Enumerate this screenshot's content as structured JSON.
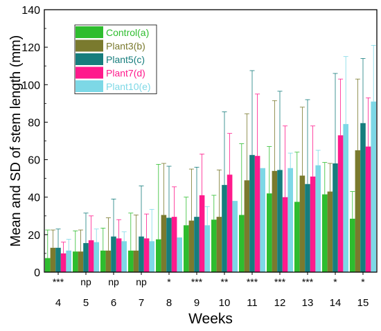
{
  "chart_data": {
    "type": "bar",
    "title": "",
    "xlabel": "Weeks",
    "ylabel": "Mean and SD of stem length (mm)",
    "ylim": [
      0,
      140
    ],
    "yticks": [
      0,
      20,
      40,
      60,
      80,
      100,
      120,
      140
    ],
    "grid": false,
    "legend_position": "top-left",
    "categories": [
      "4",
      "5",
      "6",
      "7",
      "8",
      "9",
      "10",
      "11",
      "12",
      "13",
      "14",
      "15"
    ],
    "significance": [
      "***",
      "np",
      "np",
      "np",
      "*",
      "***",
      "**",
      "***",
      "***",
      "***",
      "*",
      "*"
    ],
    "series": [
      {
        "name": "Control(a)",
        "color": "#2ebd2e",
        "values": [
          7.5,
          11,
          11.5,
          11.5,
          17.5,
          25,
          28,
          30.5,
          42,
          37.5,
          41.5,
          28.5
        ],
        "sd": [
          15,
          11,
          12,
          20,
          40,
          15,
          13,
          38,
          25,
          26.5,
          17,
          14.5
        ]
      },
      {
        "name": "Plant3(b)",
        "color": "#7a7a2e",
        "values": [
          13,
          11,
          11.5,
          11.5,
          30.5,
          27.5,
          29.5,
          49,
          54,
          51.5,
          43,
          65
        ],
        "sd": [
          9.5,
          11.5,
          17.5,
          19,
          27.5,
          27.5,
          25,
          35.5,
          37.5,
          36.5,
          15,
          38
        ]
      },
      {
        "name": "Plant5(c)",
        "color": "#167d7d",
        "values": [
          13,
          15.5,
          19,
          19,
          29,
          29.5,
          46.5,
          62.5,
          54.5,
          47,
          58,
          79.5
        ],
        "sd": [
          10,
          16,
          20,
          27,
          27.5,
          26.5,
          39,
          45,
          42,
          45,
          48,
          34.5
        ]
      },
      {
        "name": "Plant7(d)",
        "color": "#ff1a8c",
        "values": [
          10,
          17,
          18,
          18,
          29.5,
          41,
          52,
          62,
          40,
          51,
          73,
          67
        ],
        "sd": [
          6,
          13,
          10,
          13,
          16,
          22,
          22,
          33,
          38,
          27,
          30,
          26
        ]
      },
      {
        "name": "Plant10(e)",
        "color": "#7dd8e6",
        "values": [
          11.5,
          16,
          16.5,
          16.5,
          18.5,
          25,
          38,
          55.5,
          55.5,
          57,
          79,
          91
        ],
        "sd": [
          6,
          7,
          5,
          17,
          0,
          10,
          0,
          0,
          8,
          8,
          36,
          30
        ]
      }
    ]
  }
}
